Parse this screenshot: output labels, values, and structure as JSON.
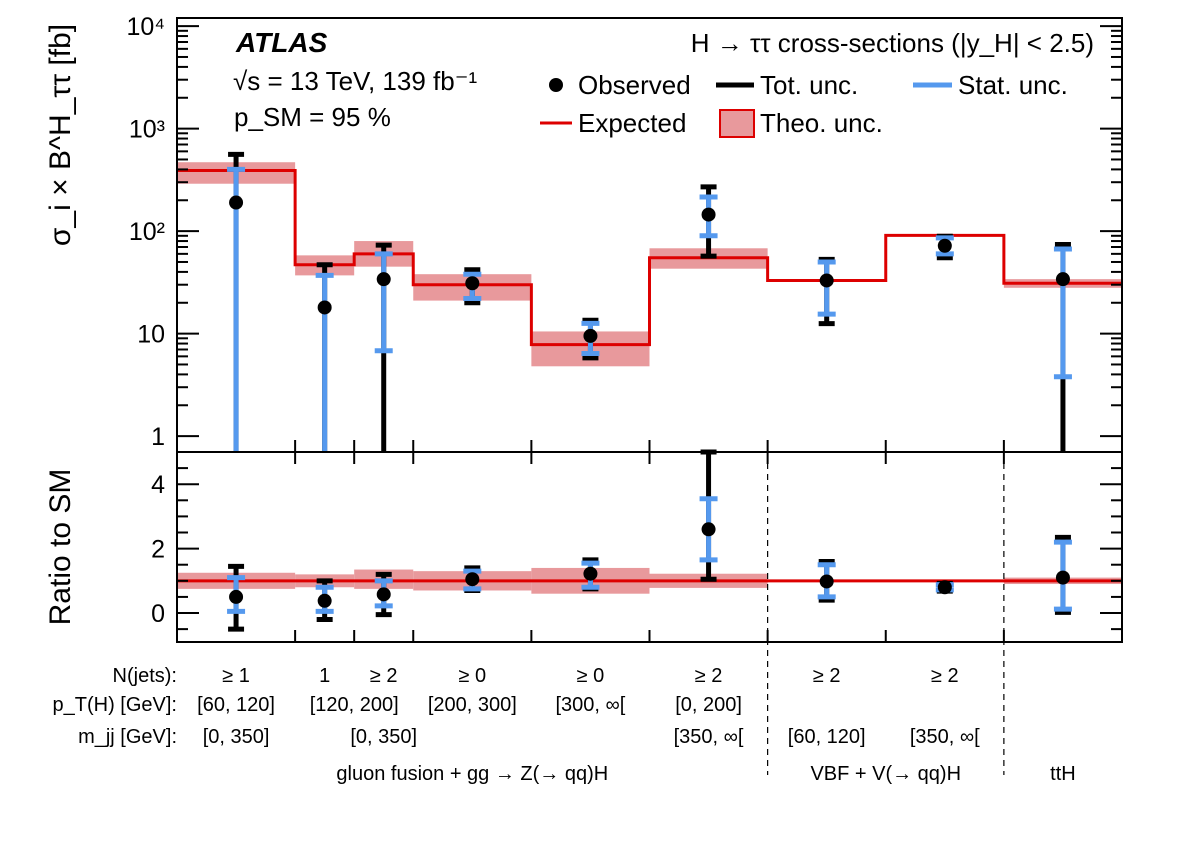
{
  "chart_data": {
    "type": "scatter",
    "experiment": "ATLAS",
    "energy_lumi": "√s = 13 TeV, 139 fb⁻¹",
    "p_sm": "p_SM = 95 %",
    "title": "H → ττ cross-sections (|y_H| < 2.5)",
    "legend": [
      "Observed",
      "Tot. unc.",
      "Stat. unc.",
      "Expected",
      "Theo. unc."
    ],
    "upper_panel": {
      "ylabel": "σ_i × B^H_ττ [fb]",
      "yscale": "log",
      "ylim": [
        0.7,
        12000
      ],
      "yticks": [
        "1",
        "10",
        "10²",
        "10³",
        "10⁴"
      ],
      "observed": [
        190,
        18,
        34,
        31,
        9.5,
        145,
        33,
        72,
        34
      ],
      "tot_unc": [
        [
          0.7,
          560
        ],
        [
          0.7,
          47
        ],
        [
          0.7,
          73
        ],
        [
          20,
          42
        ],
        [
          5.8,
          13.5
        ],
        [
          57,
          270
        ],
        [
          12.5,
          53
        ],
        [
          55,
          89
        ],
        [
          0.7,
          74
        ]
      ],
      "stat_unc": [
        [
          0.7,
          400
        ],
        [
          0.7,
          37
        ],
        [
          6.8,
          60
        ],
        [
          22,
          38
        ],
        [
          6.4,
          12.6
        ],
        [
          90,
          215
        ],
        [
          15.5,
          50
        ],
        [
          60,
          86
        ],
        [
          3.8,
          67
        ]
      ],
      "expected": [
        {
          "x": [
            0,
            1
          ],
          "value": 390,
          "band": [
            290,
            470
          ]
        },
        {
          "x": [
            1,
            1.5
          ],
          "value": 47,
          "band": [
            37,
            58
          ]
        },
        {
          "x": [
            1.5,
            2
          ],
          "value": 60,
          "band": [
            45,
            80
          ]
        },
        {
          "x": [
            2,
            3
          ],
          "value": 30,
          "band": [
            21,
            38
          ]
        },
        {
          "x": [
            3,
            4
          ],
          "value": 7.8,
          "band": [
            4.8,
            10.5
          ]
        },
        {
          "x": [
            4,
            5
          ],
          "value": 55,
          "band": [
            43,
            68
          ]
        },
        {
          "x": [
            5,
            6
          ],
          "value": 33,
          "band": [
            32,
            34
          ]
        },
        {
          "x": [
            6,
            7
          ],
          "value": 91,
          "band": [
            89,
            93
          ]
        },
        {
          "x": [
            7,
            8
          ],
          "value": 31,
          "band": [
            28,
            34
          ]
        }
      ]
    },
    "lower_panel": {
      "ylabel": "Ratio to SM",
      "ylim": [
        -0.9,
        5
      ],
      "yticks": [
        "0",
        "2",
        "4"
      ],
      "observed": [
        0.5,
        0.38,
        0.58,
        1.05,
        1.22,
        2.6,
        0.98,
        0.8,
        1.1
      ],
      "tot_unc": [
        [
          -0.5,
          1.45
        ],
        [
          -0.2,
          1.0
        ],
        [
          -0.05,
          1.2
        ],
        [
          0.7,
          1.4
        ],
        [
          0.75,
          1.65
        ],
        [
          1.05,
          5.0
        ],
        [
          0.4,
          1.6
        ],
        [
          0.68,
          0.92
        ],
        [
          0.02,
          2.35
        ]
      ],
      "stat_unc": [
        [
          0.05,
          1.1
        ],
        [
          0.05,
          0.8
        ],
        [
          0.22,
          1.0
        ],
        [
          0.75,
          1.3
        ],
        [
          0.8,
          1.55
        ],
        [
          1.65,
          3.55
        ],
        [
          0.5,
          1.5
        ],
        [
          0.72,
          0.88
        ],
        [
          0.12,
          2.2
        ]
      ],
      "expected_band": [
        [
          0.75,
          1.25
        ],
        [
          0.8,
          1.2
        ],
        [
          0.75,
          1.35
        ],
        [
          0.7,
          1.3
        ],
        [
          0.6,
          1.4
        ],
        [
          0.78,
          1.22
        ],
        [
          0.97,
          1.03
        ],
        [
          0.97,
          1.03
        ],
        [
          0.9,
          1.1
        ]
      ]
    },
    "x_positions": [
      0.5,
      1.25,
      1.75,
      2.5,
      3.5,
      4.5,
      5.5,
      6.5,
      7.5
    ],
    "bins": {
      "row_labels": [
        "N(jets):",
        "p_T(H) [GeV]:",
        "m_jj [GeV]:"
      ],
      "njets": [
        "≥ 1",
        "1",
        "≥ 2",
        "≥ 0",
        "≥ 0",
        "≥ 2",
        "≥ 2",
        "≥ 2"
      ],
      "pt": [
        "[60, 120]",
        "[120, 200]",
        "[200, 300]",
        "[300, ∞[",
        "[0, 200]"
      ],
      "mjj": [
        "[0, 350]",
        "[0, 350]",
        "[350, ∞[",
        "[60, 120]",
        "[350, ∞["
      ],
      "groups": [
        "gluon fusion + gg → Z(→ qq)H",
        "VBF + V(→ qq)H",
        "ttH"
      ]
    },
    "colors": {
      "observed": "#000000",
      "tot_unc": "#000000",
      "stat_unc": "#5599ee",
      "expected": "#dd0000",
      "theo_band": "#e8999c"
    }
  }
}
